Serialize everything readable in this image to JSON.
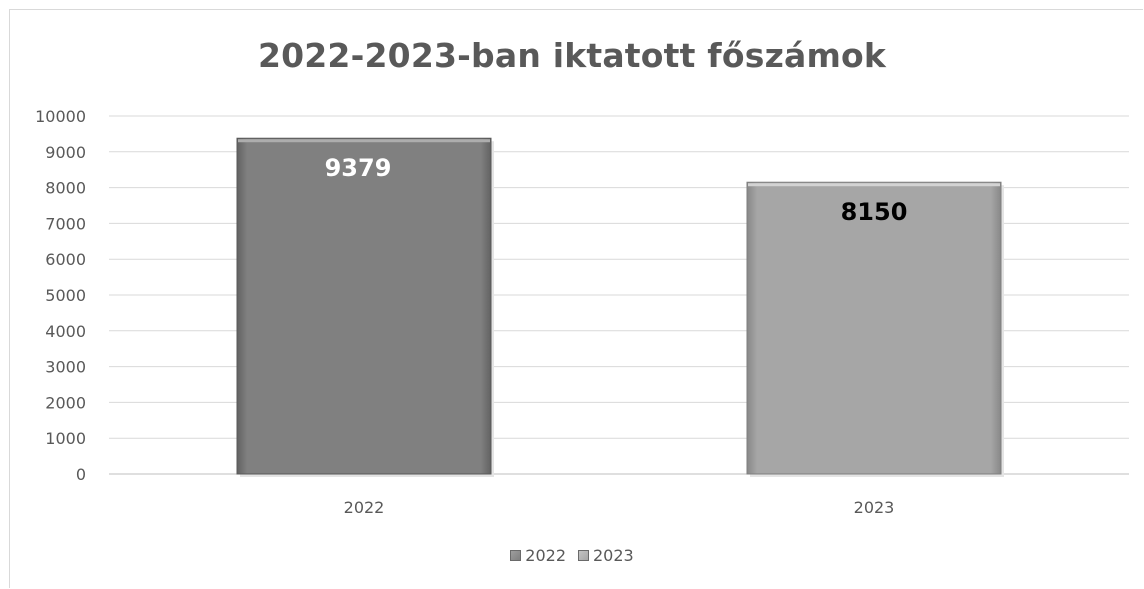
{
  "chart_data": {
    "type": "bar",
    "title": "2022-2023-ban iktatott főszámok",
    "categories": [
      "2022",
      "2023"
    ],
    "values": [
      9379,
      8150
    ],
    "ylim": [
      0,
      10000
    ],
    "yticks": [
      0,
      1000,
      2000,
      3000,
      4000,
      5000,
      6000,
      7000,
      8000,
      9000,
      10000
    ],
    "grid": true,
    "legend_position": "bottom",
    "legend": [
      "2022",
      "2023"
    ],
    "colors": [
      "#808080",
      "#a6a6a6"
    ],
    "data_label_colors": [
      "#ffffff",
      "#000000"
    ]
  }
}
